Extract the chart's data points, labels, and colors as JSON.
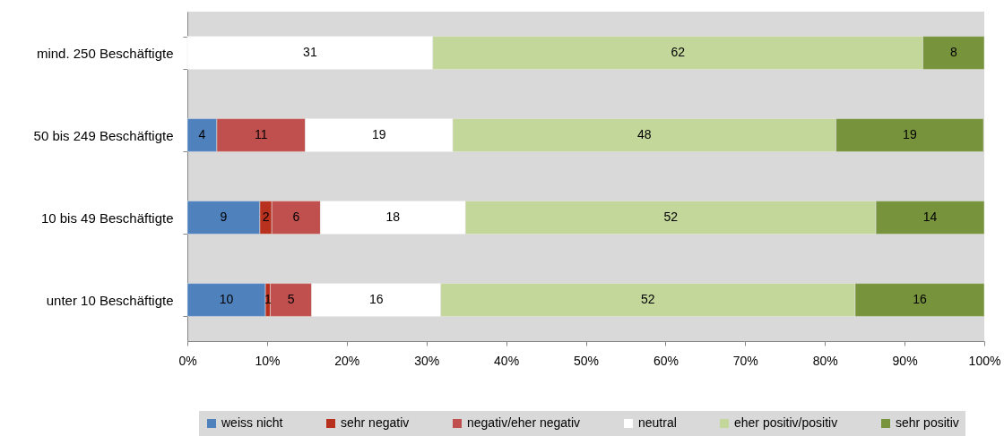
{
  "chart_data": {
    "type": "bar",
    "orientation": "horizontal",
    "stacked": true,
    "categories": [
      "mind. 250 Beschäftigte",
      "50 bis 249 Beschäftigte",
      "10 bis 49 Beschäftigte",
      "unter 10 Beschäftigte"
    ],
    "series": [
      {
        "name": "weiss nicht",
        "color": "#4f81bd",
        "values": [
          null,
          3.7,
          9.1,
          9.8
        ],
        "value_labels": [
          null,
          "4",
          "9",
          "10"
        ]
      },
      {
        "name": "sehr negativ",
        "color": "#b8311e",
        "values": [
          null,
          null,
          1.5,
          0.6
        ],
        "value_labels": [
          null,
          null,
          "2",
          "1"
        ]
      },
      {
        "name": "negativ/eher negativ",
        "color": "#c0504d",
        "values": [
          null,
          11.1,
          6.1,
          5.2
        ],
        "value_labels": [
          null,
          "11",
          "6",
          "5"
        ]
      },
      {
        "name": "neutral",
        "color": "#ffffff",
        "values": [
          30.8,
          18.5,
          18.2,
          16.2
        ],
        "value_labels": [
          "31",
          "19",
          "18",
          "16"
        ]
      },
      {
        "name": "eher positiv/positiv",
        "color": "#c4d79b",
        "values": [
          61.5,
          48.1,
          51.5,
          52.0
        ],
        "value_labels": [
          "62",
          "48",
          "52",
          "52"
        ]
      },
      {
        "name": "sehr positiv",
        "color": "#77933c",
        "values": [
          7.7,
          18.5,
          13.6,
          16.2
        ],
        "value_labels": [
          "8",
          "19",
          "14",
          "16"
        ]
      }
    ],
    "xlim": [
      0,
      100
    ],
    "xticks": [
      {
        "value": 0,
        "label": "0%"
      },
      {
        "value": 10,
        "label": "10%"
      },
      {
        "value": 20,
        "label": "20%"
      },
      {
        "value": 30,
        "label": "30%"
      },
      {
        "value": 40,
        "label": "40%"
      },
      {
        "value": 50,
        "label": "50%"
      },
      {
        "value": 60,
        "label": "60%"
      },
      {
        "value": 70,
        "label": "70%"
      },
      {
        "value": 80,
        "label": "80%"
      },
      {
        "value": 90,
        "label": "90%"
      },
      {
        "value": 100,
        "label": "100%"
      }
    ],
    "legend": "bottom"
  }
}
